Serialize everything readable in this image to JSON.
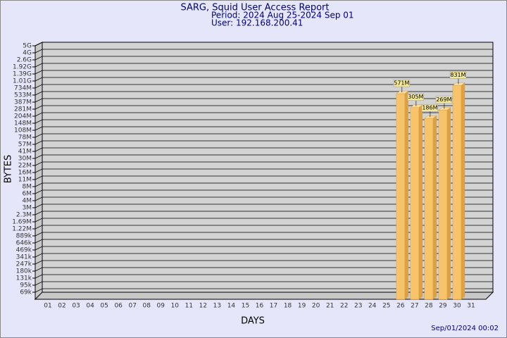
{
  "chart_data": {
    "type": "bar3d",
    "title": "SARG, Squid User Access Report",
    "subtitle": "Period: 2024 Aug 25-2024 Sep 01",
    "user": "User: 192.168.200.41",
    "xlabel": "DAYS",
    "ylabel": "BYTES",
    "footer": "Sep/01/2024 00:02",
    "color": "#f7c46c",
    "categories": [
      "01",
      "02",
      "03",
      "04",
      "05",
      "06",
      "07",
      "08",
      "09",
      "10",
      "11",
      "12",
      "13",
      "14",
      "15",
      "16",
      "17",
      "18",
      "19",
      "20",
      "21",
      "22",
      "23",
      "24",
      "25",
      "26",
      "27",
      "28",
      "29",
      "30",
      "31"
    ],
    "values": [
      null,
      null,
      null,
      null,
      null,
      null,
      null,
      null,
      null,
      null,
      null,
      null,
      null,
      null,
      null,
      null,
      null,
      null,
      null,
      null,
      null,
      null,
      null,
      null,
      null,
      571000000,
      305000000,
      186000000,
      269000000,
      831000000,
      null
    ],
    "value_labels": [
      null,
      null,
      null,
      null,
      null,
      null,
      null,
      null,
      null,
      null,
      null,
      null,
      null,
      null,
      null,
      null,
      null,
      null,
      null,
      null,
      null,
      null,
      null,
      null,
      null,
      "571M",
      "305M",
      "186M",
      "269M",
      "831M",
      null
    ],
    "ylim": [
      0,
      5000000000
    ],
    "yticks": [
      {
        "value": 69000,
        "label": "69k"
      },
      {
        "value": 95000,
        "label": "95k"
      },
      {
        "value": 131000,
        "label": "131k"
      },
      {
        "value": 180000,
        "label": "180k"
      },
      {
        "value": 247000,
        "label": "247k"
      },
      {
        "value": 341000,
        "label": "341k"
      },
      {
        "value": 469000,
        "label": "469k"
      },
      {
        "value": 646000,
        "label": "646k"
      },
      {
        "value": 889000,
        "label": "889k"
      },
      {
        "value": 1220000,
        "label": "1.22M"
      },
      {
        "value": 1690000,
        "label": "1.69M"
      },
      {
        "value": 2300000,
        "label": "2.3M"
      },
      {
        "value": 3000000,
        "label": "3M"
      },
      {
        "value": 4000000,
        "label": "4M"
      },
      {
        "value": 6000000,
        "label": "6M"
      },
      {
        "value": 8000000,
        "label": "8M"
      },
      {
        "value": 11000000,
        "label": "11M"
      },
      {
        "value": 16000000,
        "label": "16M"
      },
      {
        "value": 22000000,
        "label": "22M"
      },
      {
        "value": 30000000,
        "label": "30M"
      },
      {
        "value": 41000000,
        "label": "41M"
      },
      {
        "value": 57000000,
        "label": "57M"
      },
      {
        "value": 78000000,
        "label": "78M"
      },
      {
        "value": 108000000,
        "label": "108M"
      },
      {
        "value": 148000000,
        "label": "148M"
      },
      {
        "value": 204000000,
        "label": "204M"
      },
      {
        "value": 281000000,
        "label": "281M"
      },
      {
        "value": 387000000,
        "label": "387M"
      },
      {
        "value": 533000000,
        "label": "533M"
      },
      {
        "value": 734000000,
        "label": "734M"
      },
      {
        "value": 1010000000,
        "label": "1.01G"
      },
      {
        "value": 1390000000,
        "label": "1.39G"
      },
      {
        "value": 1920000000,
        "label": "1.92G"
      },
      {
        "value": 2600000000,
        "label": "2.6G"
      },
      {
        "value": 4000000000,
        "label": "4G"
      },
      {
        "value": 5000000000,
        "label": "5G"
      }
    ],
    "grid": true
  }
}
